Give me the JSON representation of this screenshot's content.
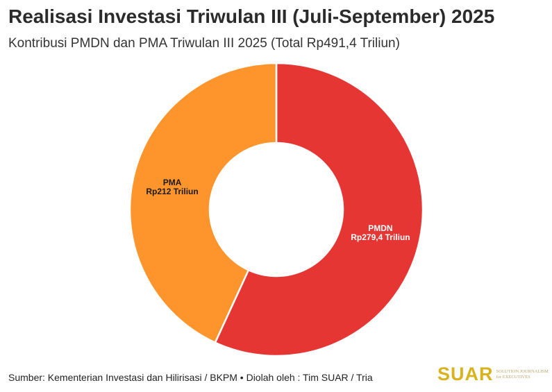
{
  "header": {
    "title": "Realisasi Investasi Triwulan III (Juli-September) 2025",
    "subtitle": "Kontribusi PMDN dan PMA Triwulan III 2025 (Total Rp491,4 Triliun)"
  },
  "chart_data": {
    "type": "pie",
    "style": "donut",
    "unit": "Rp Triliun",
    "total": 491.4,
    "slices": [
      {
        "name": "PMDN",
        "value": 279.4,
        "label_line1": "PMDN",
        "label_line2": "Rp279,4 Triliun",
        "color": "#e53634",
        "label_color": "#ffffff"
      },
      {
        "name": "PMA",
        "value": 212,
        "label_line1": "PMA",
        "label_line2": "Rp212 Triliun",
        "color": "#fd952c",
        "label_color": "#1a1a1a"
      }
    ],
    "legend": "none"
  },
  "footer": {
    "source": "Sumber: Kementerian Investasi dan Hilirisasi / BKPM • Diolah oleh : Tim SUAR / Tria",
    "logo_text": "SUAR",
    "logo_tagline": "SOLUTION JOURNALISM for EXECUTIVES"
  }
}
